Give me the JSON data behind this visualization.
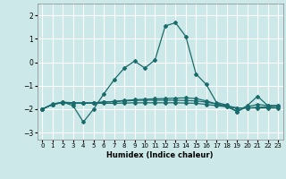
{
  "title": "",
  "xlabel": "Humidex (Indice chaleur)",
  "xlim": [
    -0.5,
    23.5
  ],
  "ylim": [
    -3.3,
    2.5
  ],
  "yticks": [
    -3,
    -2,
    -1,
    0,
    1,
    2
  ],
  "xticks": [
    0,
    1,
    2,
    3,
    4,
    5,
    6,
    7,
    8,
    9,
    10,
    11,
    12,
    13,
    14,
    15,
    16,
    17,
    18,
    19,
    20,
    21,
    22,
    23
  ],
  "background_color": "#cce8e8",
  "grid_color": "#ffffff",
  "line_color": "#1a6b6b",
  "main_y": [
    -2.0,
    -1.8,
    -1.7,
    -1.85,
    -2.55,
    -2.0,
    -1.35,
    -0.75,
    -0.25,
    0.05,
    -0.25,
    0.1,
    1.55,
    1.68,
    1.1,
    -0.5,
    -0.95,
    -1.72,
    -1.82,
    -2.1,
    -1.85,
    -1.45,
    -1.85,
    -1.85
  ],
  "flat1_y": [
    -2.0,
    -1.8,
    -1.72,
    -1.75,
    -1.75,
    -1.75,
    -1.75,
    -1.75,
    -1.74,
    -1.73,
    -1.73,
    -1.73,
    -1.73,
    -1.73,
    -1.74,
    -1.75,
    -1.8,
    -1.85,
    -1.9,
    -1.95,
    -1.95,
    -1.95,
    -1.95,
    -1.95
  ],
  "flat2_y": [
    -2.0,
    -1.8,
    -1.72,
    -1.75,
    -1.75,
    -1.73,
    -1.7,
    -1.68,
    -1.65,
    -1.63,
    -1.62,
    -1.62,
    -1.62,
    -1.62,
    -1.63,
    -1.65,
    -1.7,
    -1.78,
    -1.85,
    -1.95,
    -1.95,
    -1.92,
    -1.9,
    -1.88
  ],
  "flat3_y": [
    -2.0,
    -1.78,
    -1.7,
    -1.73,
    -1.73,
    -1.73,
    -1.7,
    -1.67,
    -1.63,
    -1.6,
    -1.58,
    -1.56,
    -1.55,
    -1.53,
    -1.52,
    -1.55,
    -1.65,
    -1.78,
    -1.9,
    -2.1,
    -1.9,
    -1.8,
    -1.85,
    -1.85
  ],
  "x": [
    0,
    1,
    2,
    3,
    4,
    5,
    6,
    7,
    8,
    9,
    10,
    11,
    12,
    13,
    14,
    15,
    16,
    17,
    18,
    19,
    20,
    21,
    22,
    23
  ]
}
